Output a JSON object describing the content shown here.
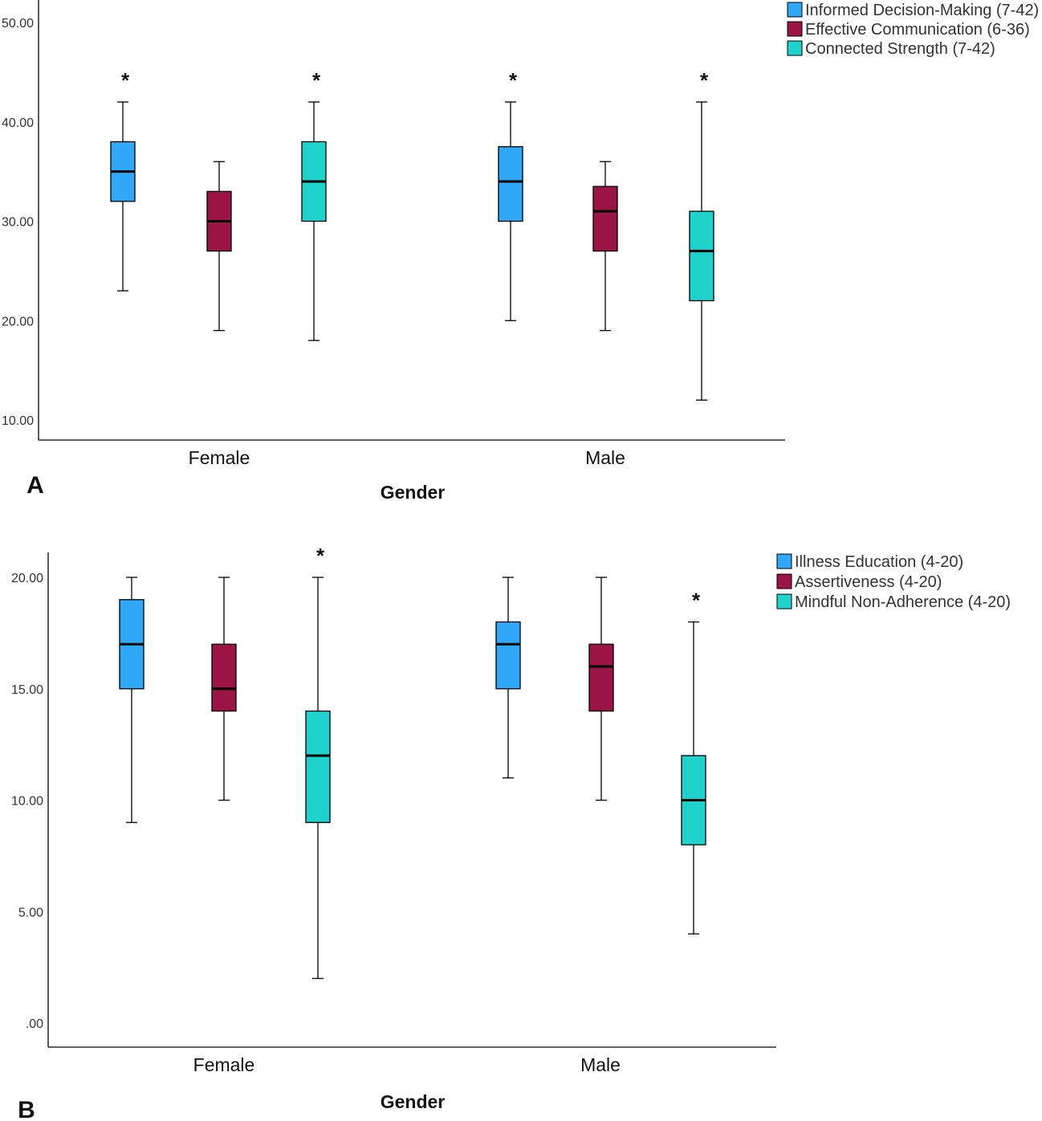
{
  "colors": {
    "series1": "#2ea8f7",
    "series2": "#9a1446",
    "series3": "#1fd3cc",
    "stroke": "#000000"
  },
  "chart_data": [
    {
      "panel_label": "A",
      "type": "boxplot",
      "xlabel": "Gender",
      "ylabel": "",
      "ylim": [
        6,
        52
      ],
      "yticks": [
        10,
        20,
        30,
        40,
        50
      ],
      "ytick_labels": [
        "10.00",
        "20.00",
        "30.00",
        "40.00",
        "50.00"
      ],
      "categories": [
        "Female",
        "Male"
      ],
      "legend": [
        "Informed Decision-Making (7-42)",
        "Effective Communication (6-36)",
        "Connected Strength (7-42)"
      ],
      "series": [
        {
          "name": "Informed Decision-Making (7-42)",
          "boxes": [
            {
              "min": 23,
              "q1": 32,
              "median": 35,
              "q3": 38,
              "max": 42,
              "outlier_marker": "*"
            },
            {
              "min": 20,
              "q1": 30,
              "median": 34,
              "q3": 37.5,
              "max": 42,
              "outlier_marker": "*"
            }
          ]
        },
        {
          "name": "Effective Communication (6-36)",
          "boxes": [
            {
              "min": 19,
              "q1": 27,
              "median": 30,
              "q3": 33,
              "max": 36
            },
            {
              "min": 19,
              "q1": 27,
              "median": 31,
              "q3": 33.5,
              "max": 36
            }
          ]
        },
        {
          "name": "Connected Strength (7-42)",
          "boxes": [
            {
              "min": 18,
              "q1": 30,
              "median": 34,
              "q3": 38,
              "max": 42,
              "outlier_marker": "*"
            },
            {
              "min": 12,
              "q1": 22,
              "median": 27,
              "q3": 31,
              "max": 42,
              "outlier_marker": "*"
            }
          ]
        }
      ]
    },
    {
      "panel_label": "B",
      "type": "boxplot",
      "xlabel": "Gender",
      "ylabel": "",
      "ylim": [
        -1,
        21
      ],
      "yticks": [
        0,
        5,
        10,
        15,
        20
      ],
      "ytick_labels": [
        ".00",
        "5.00",
        "10.00",
        "15.00",
        "20.00"
      ],
      "categories": [
        "Female",
        "Male"
      ],
      "legend": [
        "Illness Education (4-20)",
        "Assertiveness (4-20)",
        "Mindful Non-Adherence (4-20)"
      ],
      "series": [
        {
          "name": "Illness Education (4-20)",
          "boxes": [
            {
              "min": 9,
              "q1": 15,
              "median": 17,
              "q3": 19,
              "max": 20
            },
            {
              "min": 11,
              "q1": 15,
              "median": 17,
              "q3": 18,
              "max": 20
            }
          ]
        },
        {
          "name": "Assertiveness (4-20)",
          "boxes": [
            {
              "min": 10,
              "q1": 14,
              "median": 15,
              "q3": 17,
              "max": 20
            },
            {
              "min": 10,
              "q1": 14,
              "median": 16,
              "q3": 17,
              "max": 20
            }
          ]
        },
        {
          "name": "Mindful Non-Adherence (4-20)",
          "boxes": [
            {
              "min": 2,
              "q1": 9,
              "median": 12,
              "q3": 14,
              "max": 20,
              "outlier_marker": "*"
            },
            {
              "min": 4,
              "q1": 8,
              "median": 10,
              "q3": 12,
              "max": 18,
              "outlier_marker": "*"
            }
          ]
        }
      ]
    }
  ]
}
